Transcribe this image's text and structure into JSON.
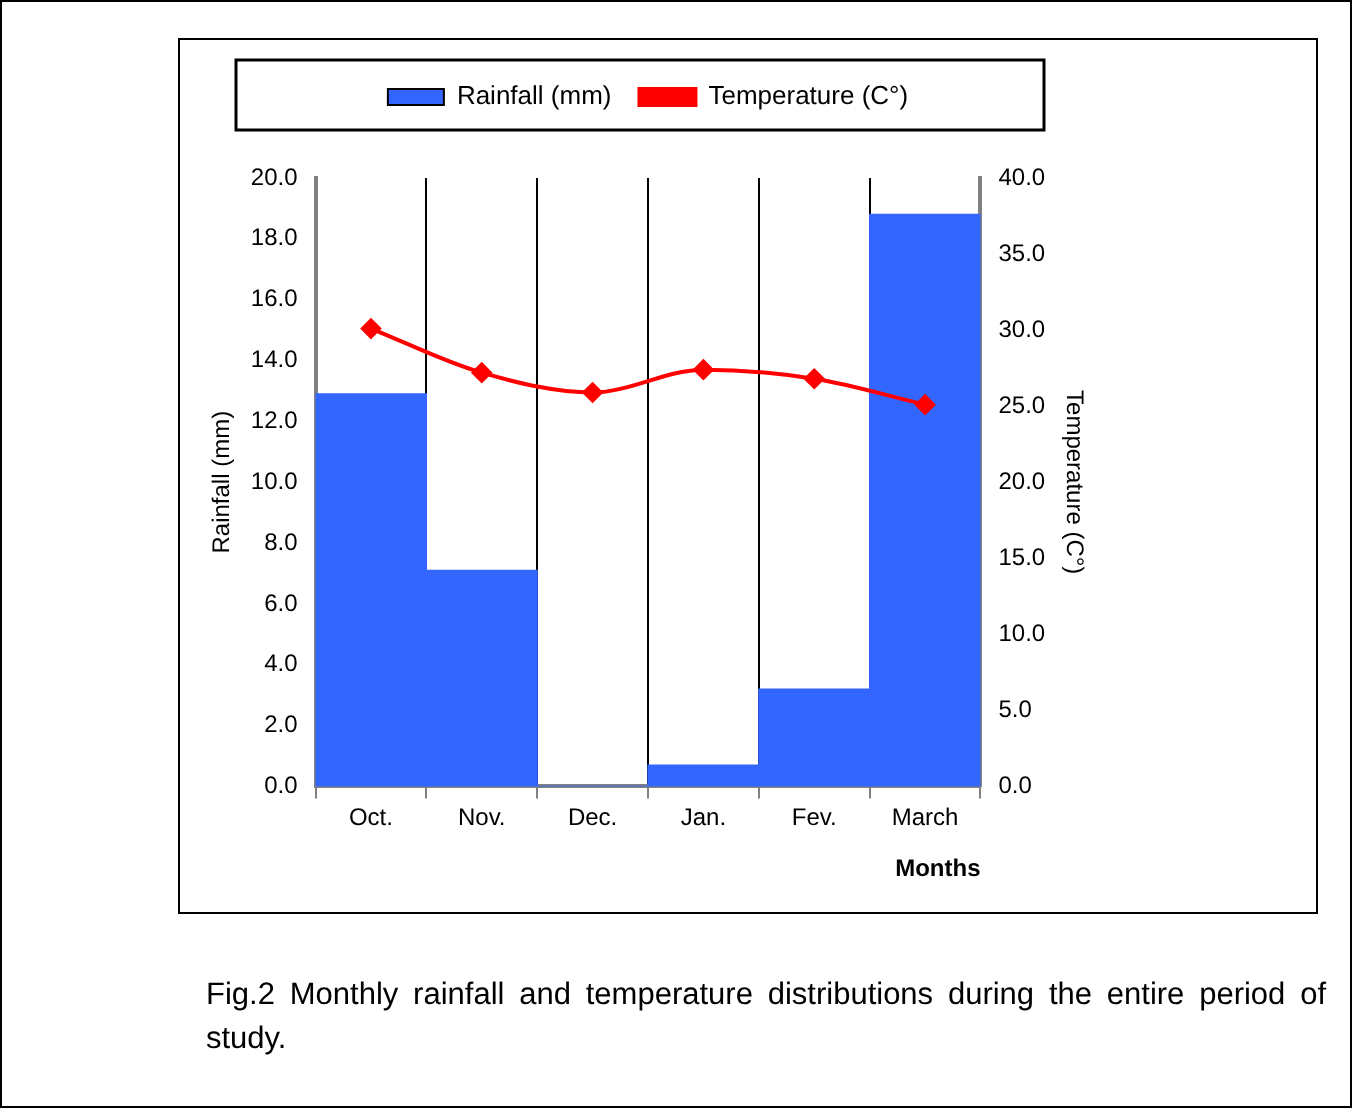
{
  "chart_data": {
    "type": "bar",
    "xlabel": "Months",
    "ylabel": "Rainfall (mm)",
    "y2label": "Temperature (C°)",
    "categories": [
      "Oct.",
      "Nov.",
      "Dec.",
      "Jan.",
      "Fev.",
      "March"
    ],
    "series": [
      {
        "name": "Rainfall (mm)",
        "color": "#3366ff",
        "values": [
          12.9,
          7.1,
          0,
          0.7,
          3.2,
          18.8
        ]
      },
      {
        "name": "Temperature (C°)",
        "type": "line",
        "axis": "y2",
        "color": "#ff0000",
        "marker": "diamond",
        "values": [
          30.1,
          27.2,
          25.9,
          27.4,
          26.8,
          25.1
        ]
      }
    ],
    "ylim": [
      0,
      20
    ],
    "yticks": [
      {
        "value": 0,
        "label": "0.0"
      },
      {
        "value": 2,
        "label": "2.0"
      },
      {
        "value": 4,
        "label": "4.0"
      },
      {
        "value": 6,
        "label": "6.0"
      },
      {
        "value": 8,
        "label": "8.0"
      },
      {
        "value": 10,
        "label": "10.0"
      },
      {
        "value": 12,
        "label": "12.0"
      },
      {
        "value": 14,
        "label": "14.0"
      },
      {
        "value": 16,
        "label": "16.0"
      },
      {
        "value": 18,
        "label": "18.0"
      },
      {
        "value": 20,
        "label": "20.0"
      }
    ],
    "y2lim": [
      0,
      40
    ],
    "y2ticks": [
      {
        "value": 0,
        "label": "0.0"
      },
      {
        "value": 5,
        "label": "5.0"
      },
      {
        "value": 10,
        "label": "10.0"
      },
      {
        "value": 15,
        "label": "15.0"
      },
      {
        "value": 20,
        "label": "20.0"
      },
      {
        "value": 25,
        "label": "25.0"
      },
      {
        "value": 30,
        "label": "30.0"
      },
      {
        "value": 35,
        "label": "35.0"
      },
      {
        "value": 40,
        "label": "40.0"
      }
    ],
    "grid": "x",
    "legend": "top",
    "annotations": [
      "Fig.2 Monthly rainfall and temperature distributions during the entire period of study."
    ]
  }
}
